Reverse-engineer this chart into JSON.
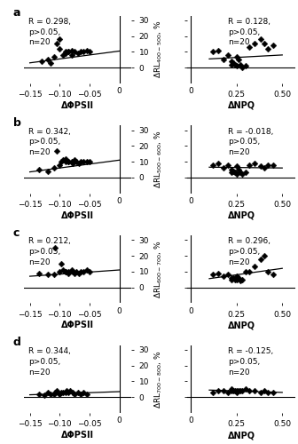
{
  "panels": [
    {
      "label": "a",
      "ylabel": "ΔRL₄₀₀₋₅₀₀, %",
      "left": {
        "stats": "R = 0.298,\np>0.05,\nn=20",
        "xlabel": "ΔΦPSII",
        "xlim": [
          -0.16,
          0.02
        ],
        "ylim": [
          -10,
          33
        ],
        "xticks": [
          -0.15,
          -0.1,
          -0.05
        ],
        "yticks": [
          0,
          10,
          20,
          30
        ],
        "scatter_x": [
          -0.13,
          -0.12,
          -0.115,
          -0.11,
          -0.105,
          -0.1,
          -0.1,
          -0.095,
          -0.09,
          -0.09,
          -0.085,
          -0.085,
          -0.08,
          -0.08,
          -0.075,
          -0.07,
          -0.065,
          -0.06,
          -0.055,
          -0.05
        ],
        "scatter_y": [
          4,
          5,
          3,
          7,
          15,
          18,
          12,
          8,
          10,
          9,
          10,
          10,
          11,
          8,
          10,
          9,
          10,
          10,
          11,
          10
        ],
        "line_x": [
          -0.15,
          0.0
        ],
        "line_y": [
          3.0,
          10.5
        ]
      },
      "right": {
        "stats": "R = 0.128,\np>0.05,\nn=20",
        "xlabel": "ΔNPQ",
        "xlim": [
          -0.02,
          0.57
        ],
        "ylim": [
          -10,
          33
        ],
        "xticks": [
          0.25,
          0.5
        ],
        "yticks": [
          0,
          10,
          20,
          30
        ],
        "scatter_x": [
          0.12,
          0.15,
          0.18,
          0.2,
          0.22,
          0.22,
          0.23,
          0.24,
          0.25,
          0.25,
          0.26,
          0.27,
          0.28,
          0.3,
          0.32,
          0.35,
          0.38,
          0.4,
          0.42,
          0.45
        ],
        "scatter_y": [
          10,
          11,
          5,
          8,
          4,
          2,
          3,
          2,
          1,
          7,
          5,
          2,
          0,
          1,
          13,
          15,
          18,
          15,
          12,
          14
        ],
        "line_x": [
          0.1,
          0.5
        ],
        "line_y": [
          5.5,
          8.0
        ]
      }
    },
    {
      "label": "b",
      "ylabel": "ΔRL₅₀₀₋₆₀₀, %",
      "left": {
        "stats": "R = 0.342,\np>0.05,\nn=20",
        "xlabel": "ΔΦPSII",
        "xlim": [
          -0.16,
          0.02
        ],
        "ylim": [
          -10,
          33
        ],
        "xticks": [
          -0.15,
          -0.1,
          -0.05
        ],
        "yticks": [
          0,
          10,
          20,
          30
        ],
        "scatter_x": [
          -0.135,
          -0.12,
          -0.11,
          -0.105,
          -0.1,
          -0.098,
          -0.095,
          -0.09,
          -0.09,
          -0.085,
          -0.085,
          -0.08,
          -0.078,
          -0.075,
          -0.072,
          -0.068,
          -0.065,
          -0.06,
          -0.055,
          -0.05
        ],
        "scatter_y": [
          5,
          4,
          6,
          17,
          8,
          10,
          11,
          10,
          12,
          10,
          10,
          10,
          9,
          11,
          10,
          9,
          10,
          10,
          10,
          10
        ],
        "line_x": [
          -0.15,
          0.0
        ],
        "line_y": [
          3.5,
          11.0
        ]
      },
      "right": {
        "stats": "R = -0.018,\np>0.05,\nn=20",
        "xlabel": "ΔNPQ",
        "xlim": [
          -0.02,
          0.57
        ],
        "ylim": [
          -10,
          33
        ],
        "xticks": [
          0.25,
          0.5
        ],
        "yticks": [
          0,
          10,
          20,
          30
        ],
        "scatter_x": [
          0.12,
          0.15,
          0.18,
          0.2,
          0.22,
          0.22,
          0.23,
          0.24,
          0.25,
          0.25,
          0.26,
          0.27,
          0.28,
          0.3,
          0.32,
          0.35,
          0.38,
          0.4,
          0.42,
          0.45
        ],
        "scatter_y": [
          8,
          9,
          6,
          8,
          5,
          3,
          4,
          3,
          2,
          7,
          5,
          3,
          2,
          3,
          8,
          9,
          7,
          6,
          8,
          8
        ],
        "line_x": [
          0.1,
          0.5
        ],
        "line_y": [
          6.5,
          6.0
        ]
      }
    },
    {
      "label": "c",
      "ylabel": "ΔRL₆₀₀₋₇₀₀, %",
      "left": {
        "stats": "R = 0.212,\np>0.05,\nn=20",
        "xlabel": "ΔΦPSII",
        "xlim": [
          -0.16,
          0.02
        ],
        "ylim": [
          -10,
          33
        ],
        "xticks": [
          -0.15,
          -0.1,
          -0.05
        ],
        "yticks": [
          0,
          10,
          20,
          30
        ],
        "scatter_x": [
          -0.135,
          -0.12,
          -0.11,
          -0.108,
          -0.1,
          -0.098,
          -0.095,
          -0.09,
          -0.09,
          -0.085,
          -0.085,
          -0.08,
          -0.078,
          -0.075,
          -0.072,
          -0.068,
          -0.065,
          -0.06,
          -0.055,
          -0.05
        ],
        "scatter_y": [
          9,
          8,
          8,
          25,
          10,
          15,
          11,
          10,
          10,
          10,
          9,
          11,
          10,
          9,
          10,
          9,
          10,
          10,
          11,
          10
        ],
        "line_x": [
          -0.15,
          0.0
        ],
        "line_y": [
          7.0,
          11.0
        ]
      },
      "right": {
        "stats": "R = 0.296,\np>0.05,\nn=20",
        "xlabel": "ΔNPQ",
        "xlim": [
          -0.02,
          0.57
        ],
        "ylim": [
          -10,
          33
        ],
        "xticks": [
          0.25,
          0.5
        ],
        "yticks": [
          0,
          10,
          20,
          30
        ],
        "scatter_x": [
          0.12,
          0.15,
          0.18,
          0.2,
          0.22,
          0.22,
          0.23,
          0.24,
          0.25,
          0.25,
          0.26,
          0.27,
          0.28,
          0.3,
          0.32,
          0.35,
          0.38,
          0.4,
          0.42,
          0.45
        ],
        "scatter_y": [
          8,
          9,
          7,
          8,
          6,
          5,
          6,
          5,
          5,
          7,
          6,
          4,
          5,
          10,
          10,
          13,
          18,
          20,
          10,
          8
        ],
        "line_x": [
          0.1,
          0.5
        ],
        "line_y": [
          5.5,
          12.0
        ]
      }
    },
    {
      "label": "d",
      "ylabel": "ΔRL₇₀₀₋₈₀₀, %",
      "left": {
        "stats": "R = 0.344,\np>0.05,\nn=20",
        "xlabel": "ΔΦPSII",
        "xlim": [
          -0.16,
          0.02
        ],
        "ylim": [
          -10,
          33
        ],
        "xticks": [
          -0.15,
          -0.1,
          -0.05
        ],
        "yticks": [
          0,
          10,
          20,
          30
        ],
        "scatter_x": [
          -0.135,
          -0.125,
          -0.12,
          -0.115,
          -0.11,
          -0.108,
          -0.105,
          -0.1,
          -0.098,
          -0.095,
          -0.09,
          -0.088,
          -0.085,
          -0.082,
          -0.078,
          -0.075,
          -0.07,
          -0.065,
          -0.06,
          -0.055
        ],
        "scatter_y": [
          2,
          1,
          3,
          2,
          2,
          3,
          4,
          2,
          3,
          3,
          3,
          4,
          3,
          4,
          3,
          2,
          3,
          2,
          3,
          2
        ],
        "line_x": [
          -0.15,
          0.0
        ],
        "line_y": [
          1.5,
          3.5
        ]
      },
      "right": {
        "stats": "R = -0.125,\np>0.05,\nn=20",
        "xlabel": "ΔNPQ",
        "xlim": [
          -0.02,
          0.57
        ],
        "ylim": [
          -10,
          33
        ],
        "xticks": [
          0.25,
          0.5
        ],
        "yticks": [
          0,
          10,
          20,
          30
        ],
        "scatter_x": [
          0.12,
          0.15,
          0.18,
          0.2,
          0.22,
          0.22,
          0.23,
          0.24,
          0.25,
          0.25,
          0.26,
          0.27,
          0.28,
          0.3,
          0.32,
          0.35,
          0.38,
          0.4,
          0.42,
          0.45
        ],
        "scatter_y": [
          3,
          4,
          4,
          3,
          4,
          5,
          4,
          4,
          3,
          4,
          4,
          4,
          4,
          5,
          4,
          4,
          3,
          4,
          3,
          3
        ],
        "line_x": [
          0.1,
          0.5
        ],
        "line_y": [
          4.5,
          3.0
        ]
      }
    }
  ],
  "marker_color": "black",
  "marker_size": 12,
  "line_color": "black",
  "line_width": 0.9,
  "font_size": 6.5,
  "label_font_size": 7,
  "tick_font_size": 6.5
}
